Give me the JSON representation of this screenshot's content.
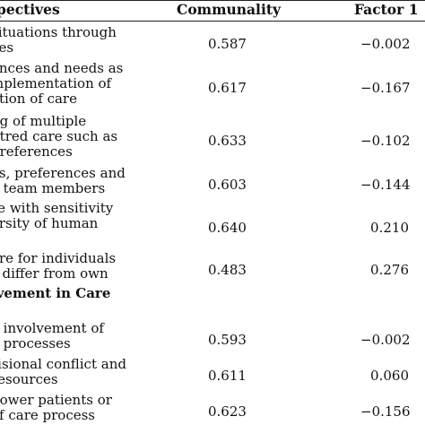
{
  "header": {
    "perspectives": "Perspectives",
    "communality": "Communality",
    "factor1": "Factor 1"
  },
  "rows": [
    {
      "lines": [
        "situations through",
        "ves"
      ],
      "communality": "0.587",
      "factor1": "−0.002"
    },
    {
      "lines": [
        "ences and needs as",
        "mplementation of",
        "ation of care"
      ],
      "communality": "0.617",
      "factor1": "−0.167"
    },
    {
      "lines": [
        "ng of multiple",
        "ntred care such as",
        "preferences"
      ],
      "communality": "0.633",
      "factor1": "−0.102"
    },
    {
      "lines": [
        "es, preferences and",
        "e team members"
      ],
      "communality": "0.603",
      "factor1": "−0.144"
    },
    {
      "lines": [
        "re with sensitivity",
        "ersity of human",
        "e"
      ],
      "communality": "0.640",
      "factor1": "0.210"
    },
    {
      "lines": [
        "are for individuals",
        "s differ from own"
      ],
      "communality": "0.483",
      "factor1": "0.276"
    },
    {
      "section": true,
      "lines": [
        "lvement in Care",
        "s"
      ]
    },
    {
      "lines": [
        "e involvement of",
        "e processes"
      ],
      "communality": "0.593",
      "factor1": "−0.002"
    },
    {
      "lines": [
        "risional conflict and",
        "resources"
      ],
      "communality": "0.611",
      "factor1": "0.060"
    },
    {
      "lines": [
        "power patients or",
        "of care process"
      ],
      "communality": "0.623",
      "factor1": "−0.156"
    }
  ]
}
